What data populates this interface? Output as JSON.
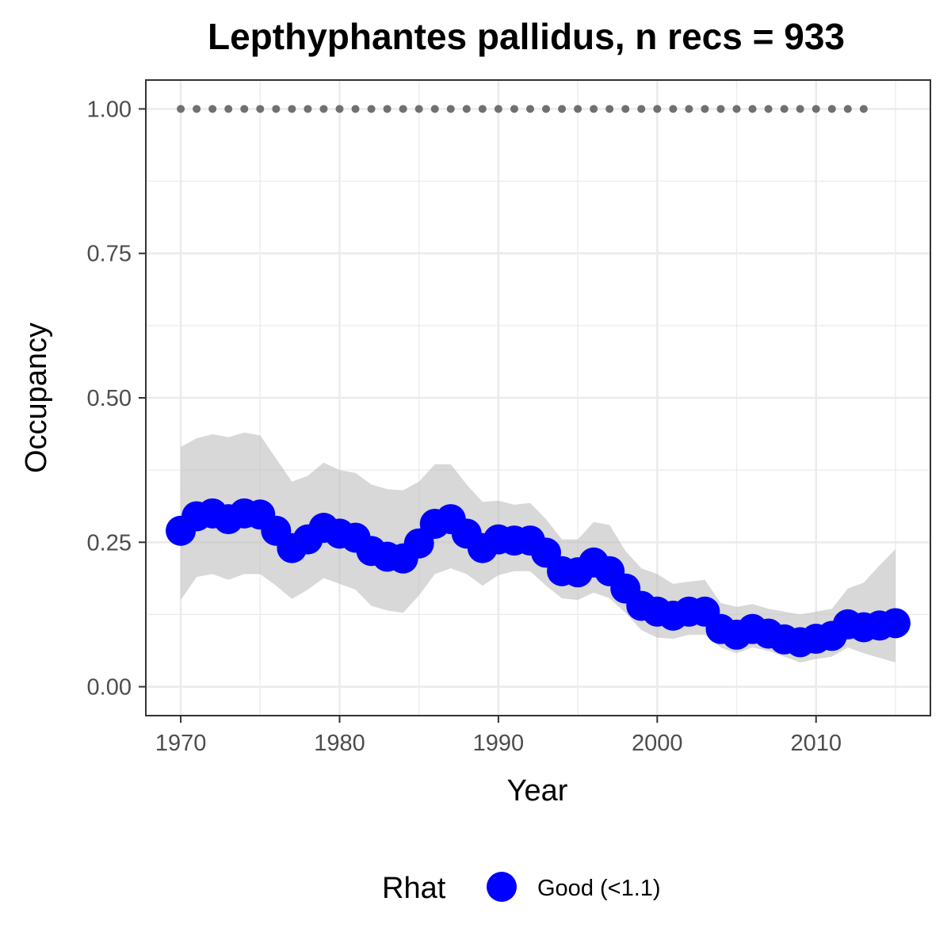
{
  "chart_data": {
    "type": "line",
    "title": "Lepthyphantes pallidus, n recs = 933",
    "xlabel": "Year",
    "ylabel": "Occupancy",
    "xlim": [
      1967.8,
      2017.2
    ],
    "ylim": [
      -0.05,
      1.05
    ],
    "x_ticks": [
      1970,
      1980,
      1990,
      2000,
      2010
    ],
    "x_tick_labels": [
      "1970",
      "1980",
      "1990",
      "2000",
      "2010"
    ],
    "y_ticks": [
      0,
      0.25,
      0.5,
      0.75,
      1.0
    ],
    "y_tick_labels": [
      "0.00",
      "0.25",
      "0.50",
      "0.75",
      "1.00"
    ],
    "grid": true,
    "legend": {
      "title": "Rhat",
      "position": "bottom",
      "entries": [
        {
          "label": "Good (<1.1)",
          "color": "#0000ff"
        }
      ]
    },
    "colors": {
      "point": "#0000ff",
      "ribbon": "#bebebe",
      "dotted": "#707070",
      "grid": "#ebebeb",
      "panel_border": "#333333"
    },
    "series": [
      {
        "name": "Good (<1.1)",
        "x": [
          1970,
          1971,
          1972,
          1973,
          1974,
          1975,
          1976,
          1977,
          1978,
          1979,
          1980,
          1981,
          1982,
          1983,
          1984,
          1985,
          1986,
          1987,
          1988,
          1989,
          1990,
          1991,
          1992,
          1993,
          1994,
          1995,
          1996,
          1997,
          1998,
          1999,
          2000,
          2001,
          2002,
          2003,
          2004,
          2005,
          2006,
          2007,
          2008,
          2009,
          2010,
          2011,
          2012,
          2013,
          2014,
          2015
        ],
        "y": [
          0.27,
          0.295,
          0.3,
          0.29,
          0.3,
          0.298,
          0.27,
          0.24,
          0.255,
          0.275,
          0.265,
          0.258,
          0.235,
          0.225,
          0.222,
          0.248,
          0.282,
          0.29,
          0.265,
          0.24,
          0.255,
          0.253,
          0.253,
          0.232,
          0.2,
          0.198,
          0.215,
          0.2,
          0.17,
          0.14,
          0.13,
          0.123,
          0.13,
          0.13,
          0.1,
          0.09,
          0.1,
          0.092,
          0.082,
          0.077,
          0.083,
          0.088,
          0.108,
          0.103,
          0.106,
          0.11
        ],
        "lower": [
          0.15,
          0.19,
          0.195,
          0.185,
          0.195,
          0.195,
          0.175,
          0.152,
          0.168,
          0.188,
          0.178,
          0.168,
          0.14,
          0.132,
          0.128,
          0.158,
          0.195,
          0.205,
          0.195,
          0.175,
          0.193,
          0.2,
          0.2,
          0.175,
          0.153,
          0.15,
          0.163,
          0.153,
          0.128,
          0.098,
          0.085,
          0.083,
          0.09,
          0.09,
          0.068,
          0.058,
          0.068,
          0.062,
          0.052,
          0.042,
          0.048,
          0.052,
          0.068,
          0.058,
          0.05,
          0.042
        ],
        "upper": [
          0.415,
          0.43,
          0.437,
          0.432,
          0.44,
          0.435,
          0.395,
          0.355,
          0.365,
          0.388,
          0.375,
          0.37,
          0.35,
          0.342,
          0.34,
          0.355,
          0.385,
          0.385,
          0.35,
          0.32,
          0.322,
          0.315,
          0.318,
          0.29,
          0.255,
          0.255,
          0.285,
          0.28,
          0.235,
          0.205,
          0.195,
          0.178,
          0.182,
          0.185,
          0.145,
          0.138,
          0.143,
          0.135,
          0.13,
          0.125,
          0.13,
          0.135,
          0.17,
          0.18,
          0.21,
          0.238
        ]
      },
      {
        "name": "",
        "style": "dotted",
        "x": [
          1970,
          1971,
          1972,
          1973,
          1974,
          1975,
          1976,
          1977,
          1978,
          1979,
          1980,
          1981,
          1982,
          1983,
          1984,
          1985,
          1986,
          1987,
          1988,
          1989,
          1990,
          1991,
          1992,
          1993,
          1994,
          1995,
          1996,
          1997,
          1998,
          1999,
          2000,
          2001,
          2002,
          2003,
          2004,
          2005,
          2006,
          2007,
          2008,
          2009,
          2010,
          2011,
          2012,
          2013
        ],
        "y": [
          1,
          1,
          1,
          1,
          1,
          1,
          1,
          1,
          1,
          1,
          1,
          1,
          1,
          1,
          1,
          1,
          1,
          1,
          1,
          1,
          1,
          1,
          1,
          1,
          1,
          1,
          1,
          1,
          1,
          1,
          1,
          1,
          1,
          1,
          1,
          1,
          1,
          1,
          1,
          1,
          1,
          1,
          1,
          1
        ]
      }
    ]
  }
}
